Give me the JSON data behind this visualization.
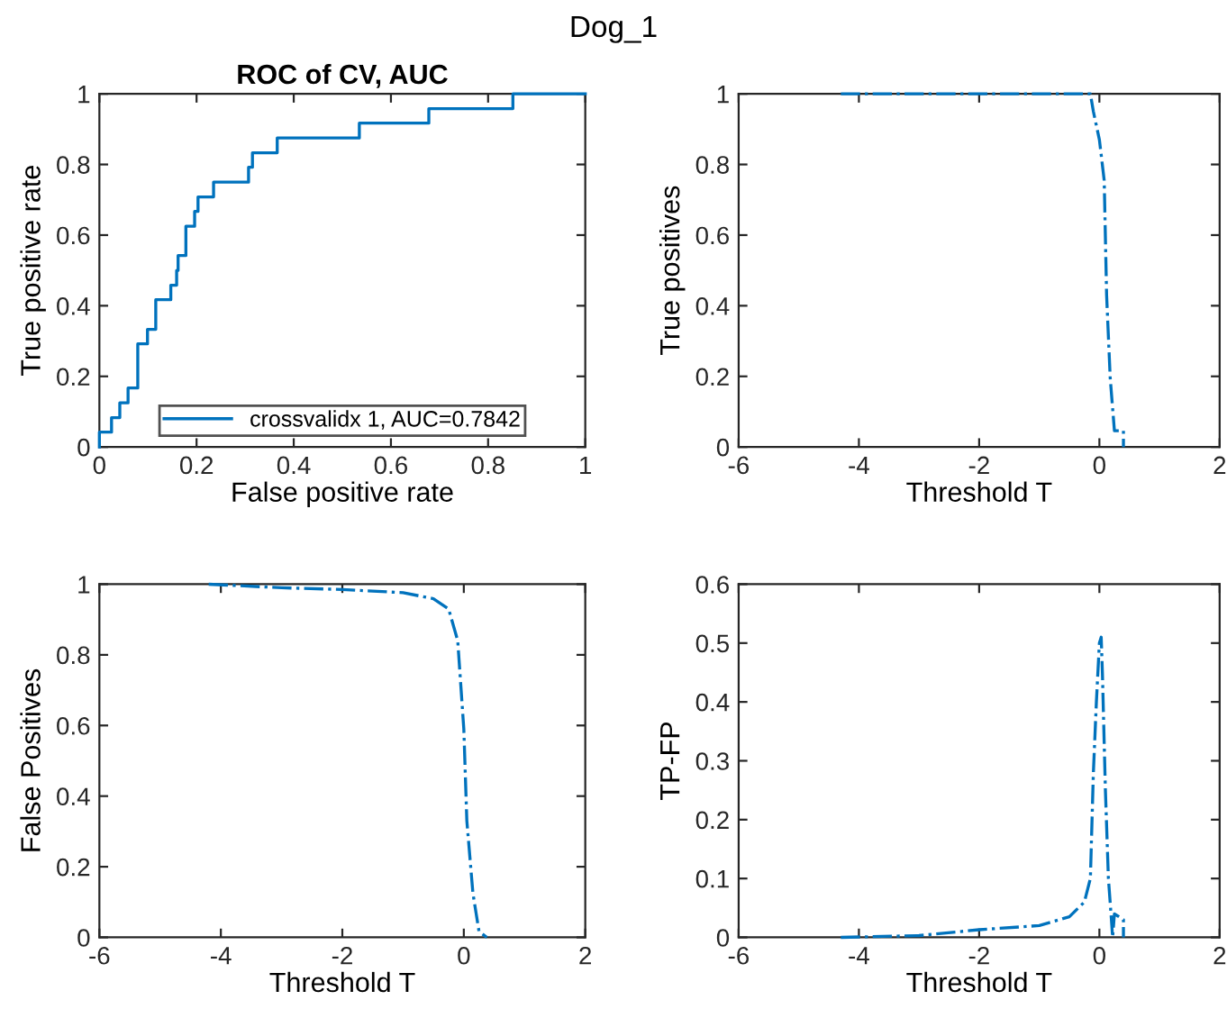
{
  "chart_data": [
    {
      "type": "line",
      "title": "ROC of CV, AUC",
      "xlabel": "False positive rate",
      "ylabel": "True positive rate",
      "annotations": [
        "Dog_1"
      ],
      "series": [
        {
          "name": "crossvalidx 1, AUC=0.7842",
          "color": "#0072bd",
          "x": [
            0,
            0,
            0.025,
            0.025,
            0.042,
            0.042,
            0.059,
            0.059,
            0.079,
            0.079,
            0.099,
            0.099,
            0.116,
            0.116,
            0.147,
            0.147,
            0.159,
            0.159,
            0.162,
            0.162,
            0.178,
            0.178,
            0.196,
            0.196,
            0.203,
            0.203,
            0.235,
            0.235,
            0.307,
            0.307,
            0.315,
            0.315,
            0.366,
            0.366,
            0.535,
            0.535,
            0.678,
            0.678,
            0.851,
            0.851,
            1
          ],
          "values": [
            0,
            0.042,
            0.042,
            0.083,
            0.083,
            0.125,
            0.125,
            0.167,
            0.167,
            0.292,
            0.292,
            0.333,
            0.333,
            0.417,
            0.417,
            0.458,
            0.458,
            0.5,
            0.5,
            0.542,
            0.542,
            0.625,
            0.625,
            0.667,
            0.667,
            0.708,
            0.708,
            0.75,
            0.75,
            0.792,
            0.792,
            0.833,
            0.833,
            0.875,
            0.875,
            0.917,
            0.917,
            0.958,
            0.958,
            1,
            1
          ]
        }
      ],
      "xlim": [
        0,
        1
      ],
      "ylim": [
        0,
        1
      ],
      "xticks": [
        0,
        0.2,
        0.4,
        0.6,
        0.8,
        1
      ],
      "yticks": [
        0,
        0.2,
        0.4,
        0.6,
        0.8,
        1
      ],
      "legend": "bottom",
      "line_style": "solid",
      "grid": false
    },
    {
      "type": "line",
      "xlabel": "Threshold T",
      "ylabel": "True positives",
      "series": [
        {
          "color": "#0072bd",
          "x": [
            -4.3,
            -0.15,
            -0.1,
            0.0,
            0.08,
            0.12,
            0.18,
            0.25,
            0.4,
            0.4
          ],
          "values": [
            1,
            1,
            0.95,
            0.87,
            0.755,
            0.43,
            0.195,
            0.046,
            0.046,
            0
          ]
        }
      ],
      "xlim": [
        -6,
        2
      ],
      "ylim": [
        0,
        1
      ],
      "xticks": [
        -6,
        -4,
        -2,
        0,
        2
      ],
      "yticks": [
        0,
        0.2,
        0.4,
        0.6,
        0.8,
        1
      ],
      "line_style": "dashdot",
      "grid": false
    },
    {
      "type": "line",
      "xlabel": "Threshold T",
      "ylabel": "False Positives",
      "series": [
        {
          "color": "#0072bd",
          "x": [
            -4.2,
            -3,
            -2,
            -1,
            -0.5,
            -0.25,
            -0.1,
            0,
            0.05,
            0.15,
            0.25,
            0.38
          ],
          "values": [
            1,
            0.99,
            0.985,
            0.976,
            0.959,
            0.93,
            0.84,
            0.59,
            0.33,
            0.125,
            0.017,
            0
          ]
        }
      ],
      "xlim": [
        -6,
        2
      ],
      "ylim": [
        0,
        1
      ],
      "xticks": [
        -6,
        -4,
        -2,
        0,
        2
      ],
      "yticks": [
        0,
        0.2,
        0.4,
        0.6,
        0.8,
        1
      ],
      "line_style": "dashdot",
      "grid": false
    },
    {
      "type": "line",
      "xlabel": "Threshold T",
      "ylabel": "TP-FP",
      "series": [
        {
          "color": "#0072bd",
          "x": [
            -4.3,
            -3,
            -2,
            -1,
            -0.5,
            -0.25,
            -0.15,
            -0.1,
            -0.05,
            0,
            0.03,
            0.05,
            0.1,
            0.15,
            0.2,
            0.22,
            0.25,
            0.4,
            0.4
          ],
          "values": [
            0,
            0.003,
            0.013,
            0.02,
            0.035,
            0.06,
            0.1,
            0.28,
            0.4,
            0.5,
            0.51,
            0.45,
            0.25,
            0.1,
            0.03,
            0,
            0.04,
            0.03,
            0
          ]
        }
      ],
      "xlim": [
        -6,
        2
      ],
      "ylim": [
        0,
        0.6
      ],
      "xticks": [
        -6,
        -4,
        -2,
        0,
        2
      ],
      "yticks": [
        0,
        0.1,
        0.2,
        0.3,
        0.4,
        0.5,
        0.6
      ],
      "line_style": "dashdot",
      "grid": false
    }
  ]
}
